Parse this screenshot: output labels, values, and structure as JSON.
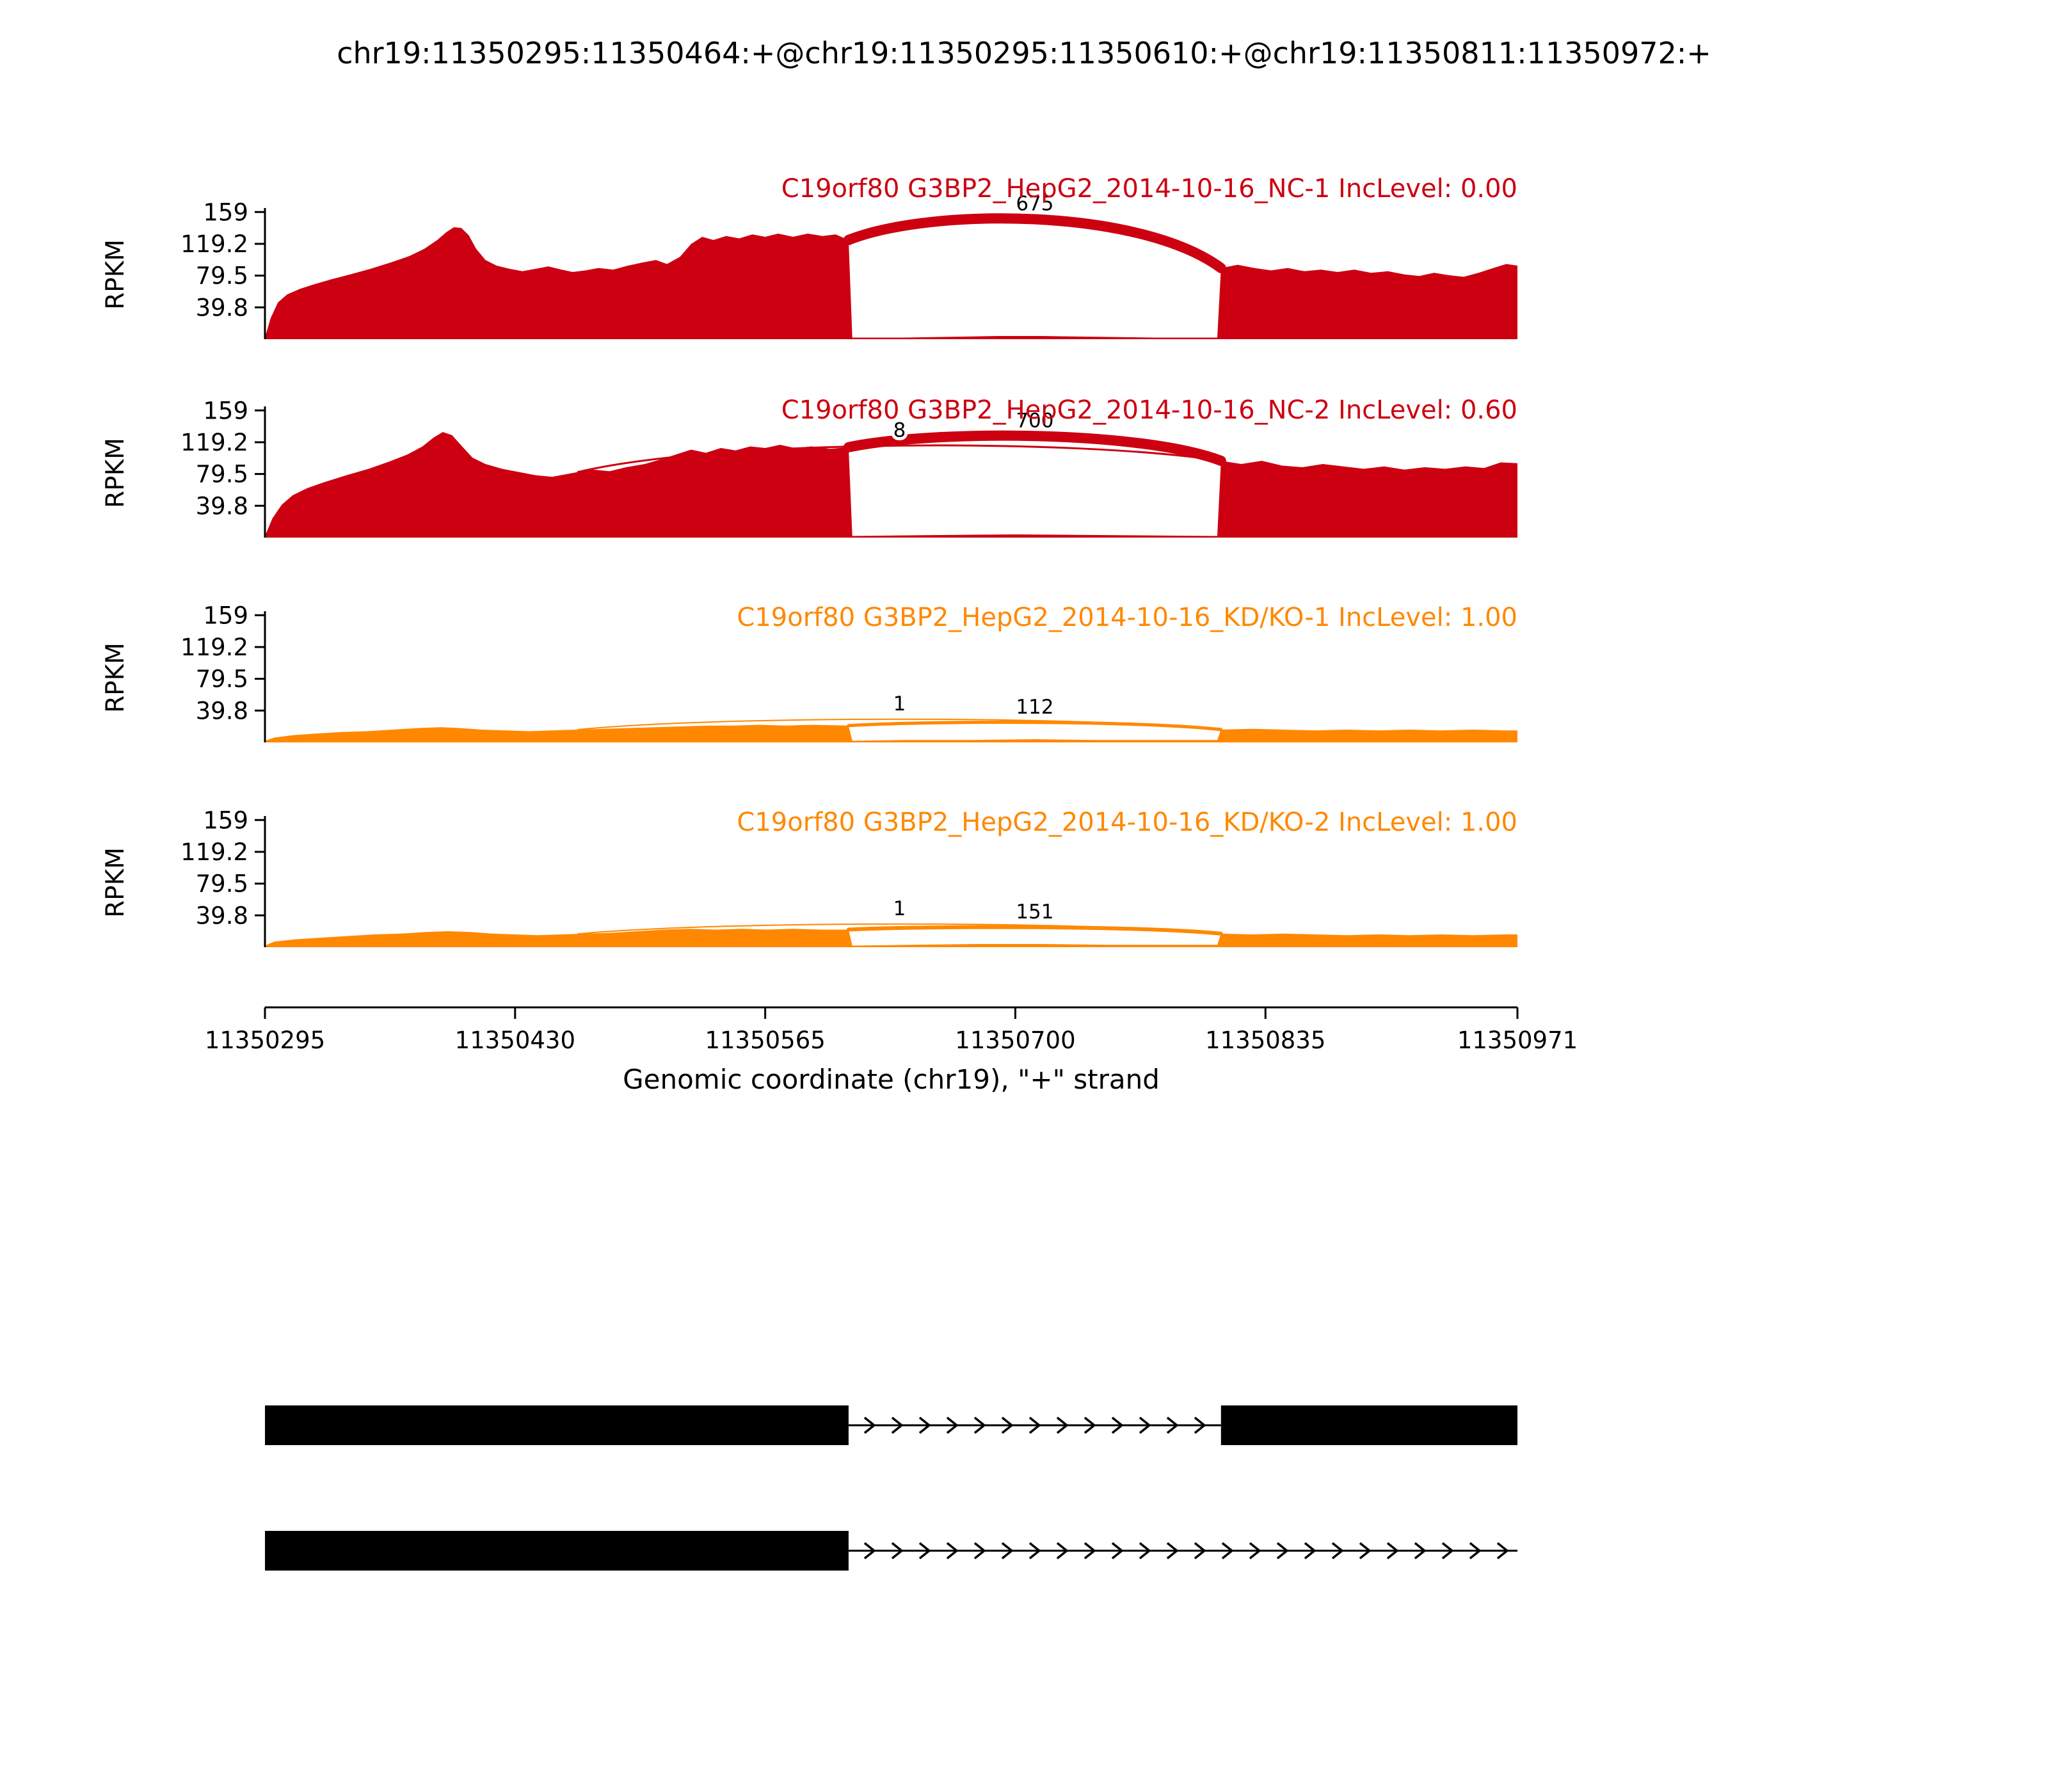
{
  "page": {
    "title": "chr19:11350295:11350464:+@chr19:11350295:11350610:+@chr19:11350811:11350972:+"
  },
  "chart_data": {
    "type": "area",
    "subtype": "sashimi-plot",
    "title": "chr19:11350295:11350464:+@chr19:11350295:11350610:+@chr19:11350811:11350972:+",
    "xlabel": "Genomic coordinate (chr19), \"+\" strand",
    "ylabel": "RPKM",
    "x_range": [
      11350295,
      11350971
    ],
    "xticks": [
      11350295,
      11350430,
      11350565,
      11350700,
      11350835,
      11350971
    ],
    "yticks": [
      39.8,
      79.5,
      119.2,
      159
    ],
    "ylim": [
      0,
      175
    ],
    "grid": false,
    "colors": {
      "nc": "#CC0011",
      "kdko": "#FF8800",
      "structure": "#000000"
    },
    "tracks": [
      {
        "name": "NC-1",
        "gene": "C19orf80",
        "sample": "G3BP2_HepG2_2014-10-16_NC-1",
        "inc_level": "0.00",
        "title": "C19orf80 G3BP2_HepG2_2014-10-16_NC-1 IncLevel: 0.00",
        "color_key": "nc",
        "coverage": [
          [
            11350295,
            2
          ],
          [
            11350298,
            26
          ],
          [
            11350302,
            46
          ],
          [
            11350307,
            56
          ],
          [
            11350314,
            63
          ],
          [
            11350322,
            69
          ],
          [
            11350331,
            75
          ],
          [
            11350341,
            81
          ],
          [
            11350352,
            88
          ],
          [
            11350363,
            96
          ],
          [
            11350373,
            104
          ],
          [
            11350381,
            113
          ],
          [
            11350388,
            124
          ],
          [
            11350393,
            134
          ],
          [
            11350397,
            140
          ],
          [
            11350401,
            139
          ],
          [
            11350405,
            130
          ],
          [
            11350409,
            113
          ],
          [
            11350414,
            99
          ],
          [
            11350420,
            92
          ],
          [
            11350427,
            88
          ],
          [
            11350434,
            85
          ],
          [
            11350441,
            88
          ],
          [
            11350448,
            91
          ],
          [
            11350455,
            87
          ],
          [
            11350461,
            84
          ],
          [
            11350468,
            86
          ],
          [
            11350475,
            89
          ],
          [
            11350483,
            87
          ],
          [
            11350491,
            92
          ],
          [
            11350499,
            96
          ],
          [
            11350506,
            99
          ],
          [
            11350512,
            94
          ],
          [
            11350519,
            103
          ],
          [
            11350525,
            119
          ],
          [
            11350531,
            128
          ],
          [
            11350537,
            124
          ],
          [
            11350544,
            129
          ],
          [
            11350551,
            126
          ],
          [
            11350558,
            131
          ],
          [
            11350565,
            128
          ],
          [
            11350572,
            132
          ],
          [
            11350580,
            128
          ],
          [
            11350588,
            132
          ],
          [
            11350596,
            129
          ],
          [
            11350603,
            131
          ],
          [
            11350610,
            124
          ],
          [
            11350612,
            2
          ],
          [
            11350640,
            2
          ],
          [
            11350665,
            3
          ],
          [
            11350690,
            4
          ],
          [
            11350715,
            4
          ],
          [
            11350745,
            3
          ],
          [
            11350775,
            2
          ],
          [
            11350809,
            2
          ],
          [
            11350811,
            89
          ],
          [
            11350820,
            93
          ],
          [
            11350829,
            89
          ],
          [
            11350838,
            86
          ],
          [
            11350847,
            89
          ],
          [
            11350856,
            85
          ],
          [
            11350865,
            87
          ],
          [
            11350874,
            84
          ],
          [
            11350883,
            87
          ],
          [
            11350892,
            83
          ],
          [
            11350901,
            85
          ],
          [
            11350910,
            81
          ],
          [
            11350918,
            79
          ],
          [
            11350926,
            83
          ],
          [
            11350934,
            80
          ],
          [
            11350942,
            78
          ],
          [
            11350950,
            83
          ],
          [
            11350958,
            89
          ],
          [
            11350965,
            94
          ],
          [
            11350971,
            92
          ]
        ],
        "junctions": [
          {
            "from": 11350610,
            "to": 11350811,
            "count": 675,
            "apex": 150,
            "lw": 16
          }
        ]
      },
      {
        "name": "NC-2",
        "gene": "C19orf80",
        "sample": "G3BP2_HepG2_2014-10-16_NC-2",
        "inc_level": "0.60",
        "title": "C19orf80 G3BP2_HepG2_2014-10-16_NC-2 IncLevel: 0.60",
        "color_key": "nc",
        "coverage": [
          [
            11350295,
            2
          ],
          [
            11350299,
            24
          ],
          [
            11350304,
            41
          ],
          [
            11350310,
            53
          ],
          [
            11350318,
            62
          ],
          [
            11350328,
            70
          ],
          [
            11350339,
            78
          ],
          [
            11350351,
            86
          ],
          [
            11350362,
            95
          ],
          [
            11350372,
            104
          ],
          [
            11350380,
            114
          ],
          [
            11350386,
            125
          ],
          [
            11350391,
            132
          ],
          [
            11350396,
            128
          ],
          [
            11350401,
            115
          ],
          [
            11350407,
            100
          ],
          [
            11350414,
            92
          ],
          [
            11350423,
            86
          ],
          [
            11350432,
            82
          ],
          [
            11350441,
            78
          ],
          [
            11350450,
            76
          ],
          [
            11350457,
            79
          ],
          [
            11350464,
            82
          ],
          [
            11350472,
            85
          ],
          [
            11350481,
            83
          ],
          [
            11350490,
            88
          ],
          [
            11350500,
            92
          ],
          [
            11350509,
            98
          ],
          [
            11350517,
            104
          ],
          [
            11350525,
            110
          ],
          [
            11350533,
            106
          ],
          [
            11350541,
            112
          ],
          [
            11350549,
            109
          ],
          [
            11350557,
            114
          ],
          [
            11350565,
            112
          ],
          [
            11350573,
            116
          ],
          [
            11350581,
            112
          ],
          [
            11350590,
            114
          ],
          [
            11350600,
            111
          ],
          [
            11350610,
            113
          ],
          [
            11350612,
            2
          ],
          [
            11350650,
            3
          ],
          [
            11350700,
            4
          ],
          [
            11350755,
            3
          ],
          [
            11350809,
            2
          ],
          [
            11350811,
            96
          ],
          [
            11350822,
            92
          ],
          [
            11350833,
            96
          ],
          [
            11350844,
            90
          ],
          [
            11350855,
            88
          ],
          [
            11350866,
            92
          ],
          [
            11350877,
            89
          ],
          [
            11350888,
            86
          ],
          [
            11350899,
            89
          ],
          [
            11350910,
            85
          ],
          [
            11350921,
            88
          ],
          [
            11350932,
            86
          ],
          [
            11350943,
            89
          ],
          [
            11350953,
            87
          ],
          [
            11350962,
            94
          ],
          [
            11350971,
            93
          ]
        ],
        "junctions": [
          {
            "from": 11350464,
            "to": 11350811,
            "count": 8,
            "apex": 115,
            "lw": 3
          },
          {
            "from": 11350610,
            "to": 11350811,
            "count": 700,
            "apex": 127,
            "lw": 16
          }
        ]
      },
      {
        "name": "KD/KO-1",
        "gene": "C19orf80",
        "sample": "G3BP2_HepG2_2014-10-16_KD/KO-1",
        "inc_level": "1.00",
        "title": "C19orf80 G3BP2_HepG2_2014-10-16_KD/KO-1 IncLevel: 1.00",
        "color_key": "kdko",
        "coverage": [
          [
            11350295,
            2
          ],
          [
            11350300,
            6
          ],
          [
            11350310,
            9
          ],
          [
            11350322,
            11
          ],
          [
            11350336,
            13
          ],
          [
            11350350,
            14
          ],
          [
            11350364,
            16
          ],
          [
            11350378,
            18
          ],
          [
            11350390,
            19
          ],
          [
            11350400,
            18
          ],
          [
            11350412,
            16
          ],
          [
            11350425,
            15
          ],
          [
            11350438,
            14
          ],
          [
            11350450,
            15
          ],
          [
            11350464,
            16
          ],
          [
            11350478,
            17
          ],
          [
            11350492,
            18
          ],
          [
            11350506,
            19
          ],
          [
            11350520,
            20
          ],
          [
            11350534,
            21
          ],
          [
            11350548,
            21
          ],
          [
            11350562,
            22
          ],
          [
            11350576,
            21
          ],
          [
            11350590,
            22
          ],
          [
            11350610,
            21
          ],
          [
            11350612,
            2
          ],
          [
            11350640,
            3
          ],
          [
            11350675,
            3
          ],
          [
            11350710,
            4
          ],
          [
            11350745,
            3
          ],
          [
            11350780,
            3
          ],
          [
            11350809,
            3
          ],
          [
            11350811,
            16
          ],
          [
            11350828,
            17
          ],
          [
            11350845,
            16
          ],
          [
            11350862,
            15
          ],
          [
            11350879,
            16
          ],
          [
            11350896,
            15
          ],
          [
            11350913,
            16
          ],
          [
            11350930,
            15
          ],
          [
            11350947,
            16
          ],
          [
            11350964,
            15
          ],
          [
            11350971,
            15
          ]
        ],
        "junctions": [
          {
            "from": 11350464,
            "to": 11350811,
            "count": 1,
            "apex": 29,
            "lw": 2
          },
          {
            "from": 11350610,
            "to": 11350811,
            "count": 112,
            "apex": 25,
            "lw": 5
          }
        ]
      },
      {
        "name": "KD/KO-2",
        "gene": "C19orf80",
        "sample": "G3BP2_HepG2_2014-10-16_KD/KO-2",
        "inc_level": "1.00",
        "title": "C19orf80 G3BP2_HepG2_2014-10-16_KD/KO-2 IncLevel: 1.00",
        "color_key": "kdko",
        "coverage": [
          [
            11350295,
            2
          ],
          [
            11350300,
            7
          ],
          [
            11350312,
            10
          ],
          [
            11350326,
            12
          ],
          [
            11350340,
            14
          ],
          [
            11350354,
            16
          ],
          [
            11350368,
            17
          ],
          [
            11350382,
            19
          ],
          [
            11350394,
            20
          ],
          [
            11350406,
            19
          ],
          [
            11350418,
            17
          ],
          [
            11350430,
            16
          ],
          [
            11350442,
            15
          ],
          [
            11350455,
            16
          ],
          [
            11350468,
            17
          ],
          [
            11350482,
            18
          ],
          [
            11350496,
            20
          ],
          [
            11350510,
            22
          ],
          [
            11350524,
            23
          ],
          [
            11350538,
            22
          ],
          [
            11350552,
            23
          ],
          [
            11350566,
            22
          ],
          [
            11350580,
            23
          ],
          [
            11350595,
            22
          ],
          [
            11350610,
            22
          ],
          [
            11350612,
            2
          ],
          [
            11350645,
            3
          ],
          [
            11350680,
            4
          ],
          [
            11350715,
            4
          ],
          [
            11350750,
            3
          ],
          [
            11350785,
            3
          ],
          [
            11350809,
            3
          ],
          [
            11350811,
            17
          ],
          [
            11350828,
            16
          ],
          [
            11350845,
            17
          ],
          [
            11350862,
            16
          ],
          [
            11350879,
            15
          ],
          [
            11350896,
            16
          ],
          [
            11350913,
            15
          ],
          [
            11350930,
            16
          ],
          [
            11350947,
            15
          ],
          [
            11350964,
            16
          ],
          [
            11350971,
            16
          ]
        ],
        "junctions": [
          {
            "from": 11350464,
            "to": 11350811,
            "count": 1,
            "apex": 29,
            "lw": 2
          },
          {
            "from": 11350610,
            "to": 11350811,
            "count": 151,
            "apex": 25,
            "lw": 6
          }
        ]
      }
    ],
    "structure": {
      "isoforms": [
        {
          "exons": [
            [
              11350295,
              11350610
            ],
            [
              11350811,
              11350972
            ]
          ],
          "intron_line": [
            11350610,
            11350811
          ]
        },
        {
          "exons": [
            [
              11350295,
              11350610
            ]
          ],
          "intron_line": [
            11350610,
            11350972
          ]
        }
      ]
    }
  }
}
